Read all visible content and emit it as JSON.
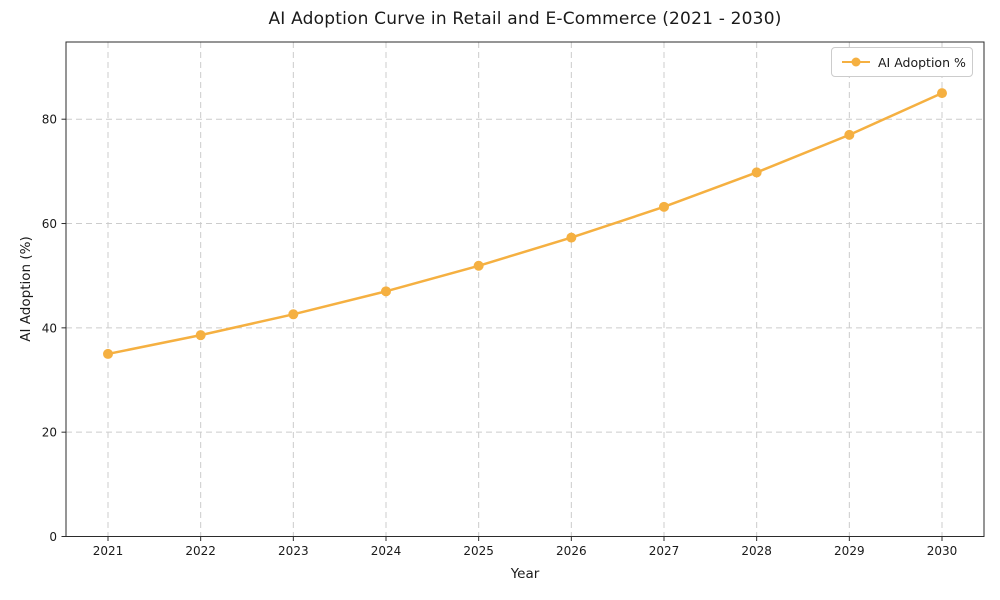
{
  "figure": {
    "title": "AI Adoption Curve in Retail and E-Commerce (2021 - 2030)"
  },
  "chart_data": {
    "type": "line",
    "title": "AI Adoption Curve in Retail and E-Commerce (2021 - 2030)",
    "xlabel": "Year",
    "ylabel": "AI Adoption (%)",
    "categories": [
      "2021",
      "2022",
      "2023",
      "2024",
      "2025",
      "2026",
      "2027",
      "2028",
      "2029",
      "2030"
    ],
    "series": [
      {
        "name": "AI Adoption %",
        "values": [
          35.0,
          38.6,
          42.6,
          47.0,
          51.9,
          57.3,
          63.2,
          69.8,
          77.0,
          85.0
        ],
        "color": "#F5B041",
        "marker": "circle"
      }
    ],
    "yticks": [
      0,
      20,
      40,
      60,
      80
    ],
    "ylim": [
      0,
      94.8
    ],
    "grid": true,
    "grid_style": "dashed",
    "legend": {
      "position": "top-right",
      "entries": [
        "AI Adoption %"
      ]
    },
    "colors": {
      "line": "#F5B041",
      "grid": "#cccccc",
      "axis": "#2b2b2b",
      "text": "#1a1a1a",
      "background": "#ffffff"
    }
  }
}
